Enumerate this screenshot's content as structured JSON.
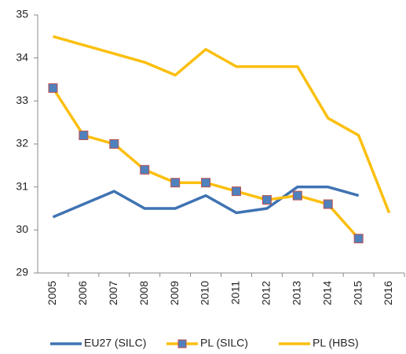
{
  "chart_data": {
    "type": "line",
    "categories": [
      "2005",
      "2006",
      "2007",
      "2008",
      "2009",
      "2010",
      "2011",
      "2012",
      "2013",
      "2014",
      "2015",
      "2016"
    ],
    "series": [
      {
        "name": "EU27 (SILC)",
        "color": "#3f73b3",
        "values": [
          30.3,
          30.6,
          30.9,
          30.5,
          30.5,
          30.8,
          30.4,
          30.5,
          31.0,
          31.0,
          30.8,
          null
        ]
      },
      {
        "name": "PL (SILC)",
        "color": "#fbbf0f",
        "marker": "square",
        "marker_color": "#4f81bd",
        "marker_edge": "#c0504d",
        "values": [
          33.3,
          32.2,
          32.0,
          31.4,
          31.1,
          31.1,
          30.9,
          30.7,
          30.8,
          30.6,
          29.8,
          null
        ]
      },
      {
        "name": "PL (HBS)",
        "color": "#fbbf0f",
        "values": [
          34.5,
          34.3,
          34.1,
          33.9,
          33.6,
          34.2,
          33.8,
          33.8,
          33.8,
          32.6,
          32.2,
          30.4
        ]
      }
    ],
    "ylim": [
      29,
      35
    ],
    "yticks": [
      29,
      30,
      31,
      32,
      33,
      34,
      35
    ],
    "grid": false,
    "legend": "bottom"
  }
}
